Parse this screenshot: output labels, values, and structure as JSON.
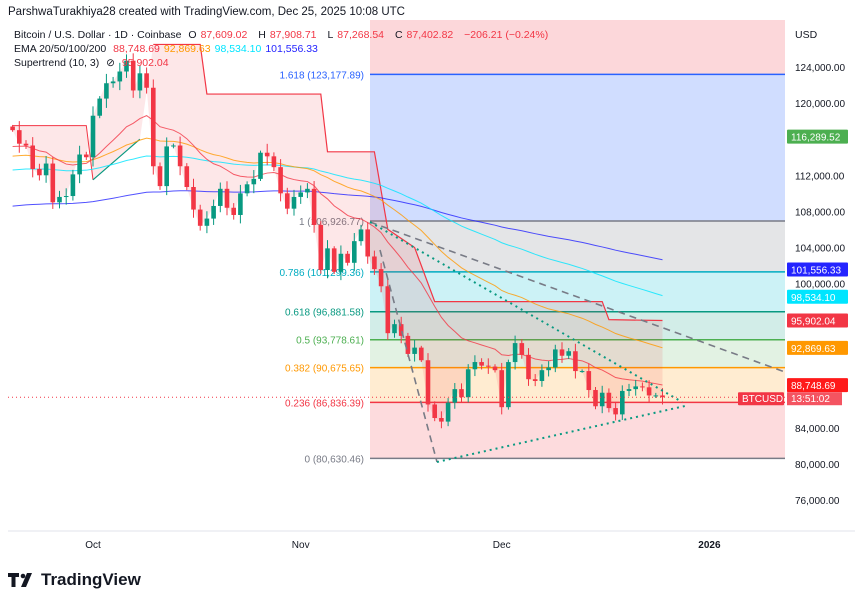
{
  "credit": "ParshwaTurakhiya28 created with TradingView.com, Dec 25, 2025 10:08 UTC",
  "legend": {
    "symbol": "Bitcoin / U.S. Dollar · 1D · Coinbase",
    "o_label": "O",
    "o": "87,609.02",
    "h_label": "H",
    "h": "87,908.71",
    "l_label": "L",
    "l": "87,268.54",
    "c_label": "C",
    "c": "87,402.82",
    "change": "−206.21 (−0.24%)",
    "ema_label": "EMA 20/50/100/200",
    "ema20": "88,748.69",
    "ema50": "92,869.63",
    "ema100": "98,534.10",
    "ema200": "101,556.33",
    "st_label": "Supertrend (10, 3)",
    "st_icon": "eye-off-icon",
    "st": "95,902.04"
  },
  "currency": "USD",
  "brand": "TradingView",
  "colors": {
    "up": "#089981",
    "down": "#f23645",
    "ema20": "#f23645",
    "ema50": "#ff9800",
    "ema100": "#00e5ff",
    "ema200": "#2424ff"
  },
  "chart_data": {
    "type": "candlestick",
    "start_date": "2025-09-19",
    "closes": [
      117000,
      115500,
      115300,
      112700,
      112000,
      113300,
      109000,
      109600,
      109700,
      112100,
      114300,
      114000,
      118600,
      120500,
      122200,
      122400,
      123500,
      124700,
      121400,
      123300,
      121700,
      113000,
      110800,
      115200,
      115300,
      113000,
      110700,
      108200,
      106400,
      107200,
      108600,
      110500,
      108400,
      107600,
      110000,
      111000,
      111600,
      114500,
      114100,
      112900,
      110000,
      108300,
      109600,
      110100,
      110500,
      106500,
      101500,
      103900,
      101300,
      103300,
      102300,
      104700,
      106000,
      103000,
      101600,
      99700,
      94500,
      95500,
      94200,
      92200,
      92900,
      91500,
      86600,
      85100,
      84700,
      86800,
      88300,
      87400,
      90500,
      91300,
      90900,
      90800,
      90400,
      86300,
      91300,
      93400,
      92100,
      89400,
      89200,
      90400,
      90700,
      92700,
      92000,
      92500,
      90300,
      90300,
      88200,
      86400,
      87900,
      86200,
      85500,
      88100,
      88300,
      88600,
      88500,
      87600,
      87600,
      87402.82
    ],
    "ema_seeds": {
      "ema20": 115000,
      "ema50": 114000,
      "ema100": 112500,
      "ema200": 108500
    },
    "supertrend": [
      [
        0,
        117500
      ],
      [
        11,
        117500
      ],
      [
        12,
        111500
      ],
      [
        19,
        116000
      ],
      [
        21,
        126500
      ],
      [
        28,
        126500
      ],
      [
        29,
        121000
      ],
      [
        46,
        121000
      ],
      [
        47,
        114600
      ],
      [
        54,
        114600
      ],
      [
        56,
        106000
      ],
      [
        60,
        104000
      ],
      [
        63,
        98000
      ],
      [
        88,
        98000
      ],
      [
        89,
        96000
      ],
      [
        97,
        95902
      ]
    ],
    "fib": [
      {
        "ratio": "1.618",
        "value": "123,177.89",
        "v": 123177.89,
        "color": "#2962ff",
        "fill": "rgba(41,98,255,0.22)"
      },
      {
        "ratio": "1",
        "value": "106,926.77",
        "v": 106926.77,
        "color": "#787b86",
        "fill": "rgba(120,123,134,0.2)"
      },
      {
        "ratio": "0.786",
        "value": "101,299.36",
        "v": 101299.36,
        "color": "#00acc1",
        "fill": "rgba(0,188,212,0.2)"
      },
      {
        "ratio": "0.618",
        "value": "96,881.58",
        "v": 96881.58,
        "color": "#089981",
        "fill": "rgba(8,153,129,0.18)"
      },
      {
        "ratio": "0.5",
        "value": "93,778.61",
        "v": 93778.61,
        "color": "#4caf50",
        "fill": "rgba(76,175,80,0.16)"
      },
      {
        "ratio": "0.382",
        "value": "90,675.65",
        "v": 90675.65,
        "color": "#ff9800",
        "fill": "rgba(255,152,0,0.18)"
      },
      {
        "ratio": "0.236",
        "value": "86,836.39",
        "v": 86836.39,
        "color": "#f23645",
        "fill": "rgba(242,54,69,0.18)"
      },
      {
        "ratio": "0",
        "value": "80,630.46",
        "v": 80630.46,
        "color": "#787b86",
        "fill": null
      }
    ],
    "y_ticks": [
      "124,000.00",
      "120,000.00",
      "112,000.00",
      "108,000.00",
      "104,000.00",
      "100,000.00",
      "84,000.00",
      "80,000.00",
      "76,000.00"
    ],
    "y_tick_values": [
      124000,
      120000,
      112000,
      108000,
      104000,
      100000,
      84000,
      80000,
      76000
    ],
    "x_ticks": [
      {
        "label": "Oct",
        "day": 12
      },
      {
        "label": "Nov",
        "day": 43
      },
      {
        "label": "Dec",
        "day": 73
      },
      {
        "label": "2026",
        "day": 104
      }
    ],
    "price_labels": [
      {
        "text": "116,289.52",
        "v": 116289.52,
        "bg": "#4caf50"
      },
      {
        "text": "101,556.33",
        "v": 101556.33,
        "bg": "#2424ff"
      },
      {
        "text": "98,534.10",
        "v": 98534.1,
        "bg": "#00e5ff",
        "fg": "#131722"
      },
      {
        "text": "95,902.04",
        "v": 95902.04,
        "bg": "#f23645"
      },
      {
        "text": "92,869.63",
        "v": 92869.63,
        "bg": "#ff9800"
      },
      {
        "text": "88,748.69",
        "v": 88748.69,
        "bg": "#ff1a1a"
      }
    ],
    "last": {
      "symbol": "BTCUSD",
      "countdown": "13:51:02",
      "v": 87402.82
    }
  }
}
